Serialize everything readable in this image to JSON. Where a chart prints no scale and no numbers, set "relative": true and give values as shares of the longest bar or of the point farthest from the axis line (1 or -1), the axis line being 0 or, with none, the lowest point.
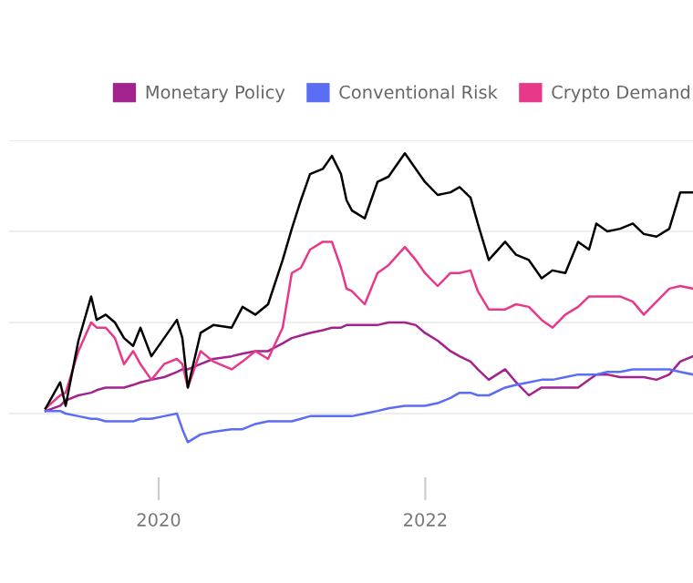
{
  "chart_data": {
    "type": "line",
    "relative": true,
    "grid": "y",
    "legend": "top",
    "marker": "none",
    "line_style": "solid",
    "x": [
      "2019-02-25",
      "2019-04-06",
      "2019-04-21",
      "2019-05-26",
      "2019-06-30",
      "2019-07-15",
      "2019-08-09",
      "2019-09-03",
      "2019-09-28",
      "2019-10-23",
      "2019-11-12",
      "2019-12-12",
      "2020-01-16",
      "2020-02-20",
      "2020-03-06",
      "2020-03-21",
      "2020-04-25",
      "2020-05-30",
      "2020-07-19",
      "2020-08-18",
      "2020-09-22",
      "2020-10-27",
      "2020-12-06",
      "2020-12-31",
      "2021-01-25",
      "2021-02-19",
      "2021-03-26",
      "2021-04-20",
      "2021-05-15",
      "2021-05-30",
      "2021-06-14",
      "2021-07-19",
      "2021-08-23",
      "2021-09-22",
      "2021-11-06",
      "2021-12-06",
      "2021-12-31",
      "2022-02-04",
      "2022-03-11",
      "2022-04-05",
      "2022-05-05",
      "2022-05-25",
      "2022-06-24",
      "2022-08-08",
      "2022-09-07",
      "2022-10-12",
      "2022-11-16",
      "2022-12-16",
      "2023-01-20",
      "2023-02-24",
      "2023-03-26",
      "2023-04-15",
      "2023-05-15",
      "2023-06-19",
      "2023-07-24",
      "2023-08-23",
      "2023-09-27",
      "2023-11-01",
      "2023-12-01",
      "2024-01-05"
    ],
    "xlim": [
      "2018-11-17",
      "2024-01-05"
    ],
    "xticks": [
      {
        "value": "2020-01-01",
        "label": "2020"
      },
      {
        "value": "2022-01-01",
        "label": "2022"
      }
    ],
    "series": [
      {
        "name": "Monetary Policy",
        "color": "#a3238e",
        "values": [
          0.01,
          0.03,
          0.05,
          0.07,
          0.08,
          0.09,
          0.1,
          0.1,
          0.1,
          0.11,
          0.12,
          0.13,
          0.14,
          0.16,
          0.17,
          0.17,
          0.19,
          0.21,
          0.22,
          0.23,
          0.24,
          0.24,
          0.27,
          0.29,
          0.3,
          0.31,
          0.32,
          0.33,
          0.33,
          0.34,
          0.34,
          0.34,
          0.34,
          0.35,
          0.35,
          0.34,
          0.31,
          0.28,
          0.24,
          0.22,
          0.2,
          0.17,
          0.13,
          0.17,
          0.12,
          0.07,
          0.1,
          0.1,
          0.1,
          0.1,
          0.13,
          0.15,
          0.15,
          0.14,
          0.14,
          0.14,
          0.13,
          0.15,
          0.2,
          0.22
        ]
      },
      {
        "name": "Conventional Risk",
        "color": "#5b6cf5",
        "values": [
          0.01,
          0.01,
          0,
          -0.01,
          -0.02,
          -0.02,
          -0.03,
          -0.03,
          -0.03,
          -0.03,
          -0.02,
          -0.02,
          -0.01,
          0,
          -0.06,
          -0.11,
          -0.08,
          -0.07,
          -0.06,
          -0.06,
          -0.04,
          -0.03,
          -0.03,
          -0.03,
          -0.02,
          -0.01,
          -0.01,
          -0.01,
          -0.01,
          -0.01,
          -0.01,
          0,
          0.01,
          0.02,
          0.03,
          0.03,
          0.03,
          0.04,
          0.06,
          0.08,
          0.08,
          0.07,
          0.07,
          0.1,
          0.11,
          0.12,
          0.13,
          0.13,
          0.14,
          0.15,
          0.15,
          0.15,
          0.16,
          0.16,
          0.17,
          0.17,
          0.17,
          0.17,
          0.16,
          0.15
        ]
      },
      {
        "name": "Crypto Demand",
        "color": "#e8388a",
        "values": [
          0.02,
          0.07,
          0.08,
          0.24,
          0.35,
          0.33,
          0.33,
          0.29,
          0.19,
          0.24,
          0.19,
          0.13,
          0.19,
          0.21,
          0.19,
          0.1,
          0.24,
          0.2,
          0.17,
          0.2,
          0.24,
          0.21,
          0.33,
          0.54,
          0.56,
          0.63,
          0.66,
          0.66,
          0.56,
          0.48,
          0.47,
          0.42,
          0.54,
          0.57,
          0.64,
          0.59,
          0.54,
          0.49,
          0.54,
          0.54,
          0.55,
          0.47,
          0.4,
          0.4,
          0.42,
          0.41,
          0.36,
          0.33,
          0.38,
          0.41,
          0.45,
          0.45,
          0.45,
          0.45,
          0.43,
          0.38,
          0.43,
          0.48,
          0.49,
          0.48
        ]
      },
      {
        "color": "#000000",
        "values": [
          0.02,
          0.12,
          0.03,
          0.28,
          0.45,
          0.36,
          0.38,
          0.35,
          0.29,
          0.26,
          0.33,
          0.22,
          0.29,
          0.36,
          0.29,
          0.1,
          0.31,
          0.34,
          0.33,
          0.41,
          0.38,
          0.42,
          0.59,
          0.71,
          0.82,
          0.92,
          0.94,
          0.99,
          0.92,
          0.82,
          0.78,
          0.75,
          0.89,
          0.91,
          1.0,
          0.94,
          0.89,
          0.84,
          0.85,
          0.87,
          0.83,
          0.73,
          0.59,
          0.66,
          0.61,
          0.59,
          0.52,
          0.55,
          0.54,
          0.66,
          0.63,
          0.73,
          0.7,
          0.71,
          0.73,
          0.69,
          0.68,
          0.71,
          0.85,
          0.85
        ]
      }
    ]
  }
}
